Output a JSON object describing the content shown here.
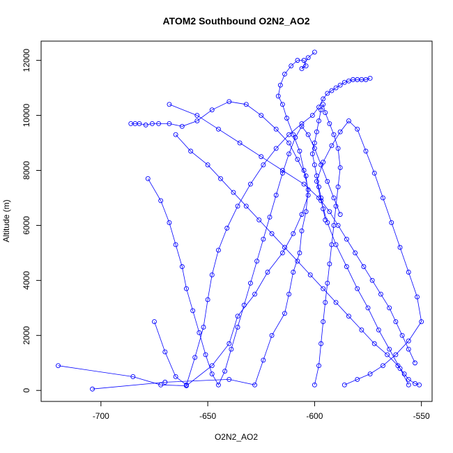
{
  "chart_data": {
    "type": "line",
    "title": "ATOM2 Southbound O2N2_AO2",
    "xlabel": "O2N2_AO2",
    "ylabel": "Altitude (m)",
    "xlim": [
      -728,
      -545
    ],
    "ylim": [
      -400,
      12700
    ],
    "xticks": [
      -700,
      -650,
      -600,
      -550
    ],
    "yticks": [
      0,
      2000,
      4000,
      6000,
      8000,
      10000,
      12000
    ],
    "grid": false,
    "legend": "none",
    "color": "#0000ff",
    "series": [
      {
        "x": [
          -720,
          -685,
          -672,
          -660,
          -648,
          -640,
          -636,
          -628,
          -622,
          -615,
          -610,
          -606,
          -603,
          -604,
          -608,
          -612,
          -618,
          -625,
          -632,
          -640,
          -648,
          -655,
          -662,
          -668,
          -673,
          -676,
          -679,
          -682,
          -684,
          -686
        ],
        "y": [
          900,
          500,
          200,
          170,
          900,
          1700,
          2700,
          3500,
          4300,
          5000,
          5700,
          6400,
          7100,
          7800,
          8400,
          9000,
          9500,
          10000,
          10400,
          10500,
          10200,
          9800,
          9600,
          9700,
          9700,
          9700,
          9650,
          9700,
          9700,
          9700
        ]
      },
      {
        "x": [
          -704,
          -670,
          -640,
          -628,
          -624,
          -620,
          -614,
          -612,
          -610,
          -607,
          -606,
          -604,
          -603,
          -605,
          -607,
          -610,
          -613,
          -615,
          -617,
          -616,
          -614,
          -611,
          -608,
          -605,
          -604,
          -606,
          -603,
          -600
        ],
        "y": [
          50,
          300,
          400,
          200,
          1100,
          2000,
          2800,
          3500,
          4300,
          5000,
          5800,
          6500,
          7300,
          8000,
          8700,
          9300,
          9900,
          10400,
          10700,
          11100,
          11500,
          11800,
          12000,
          12000,
          11800,
          11700,
          12100,
          12300
        ]
      },
      {
        "x": [
          -675,
          -670,
          -665,
          -660,
          -656,
          -652,
          -650,
          -648,
          -645,
          -641,
          -636,
          -630,
          -624,
          -618,
          -612,
          -606,
          -601,
          -598,
          -596,
          -594,
          -592,
          -590,
          -588,
          -586,
          -584,
          -582,
          -580,
          -578,
          -576,
          -574
        ],
        "y": [
          2500,
          1400,
          500,
          200,
          1200,
          2300,
          3300,
          4200,
          5100,
          5900,
          6700,
          7500,
          8200,
          8800,
          9300,
          9700,
          10000,
          10300,
          10600,
          10800,
          10900,
          11000,
          11100,
          11200,
          11250,
          11300,
          11300,
          11300,
          11300,
          11350
        ]
      },
      {
        "x": [
          -600,
          -598,
          -597,
          -596,
          -595,
          -594,
          -593,
          -592,
          -591,
          -590,
          -589,
          -588,
          -589,
          -591,
          -593,
          -595,
          -596,
          -597,
          -598,
          -599,
          -600,
          -601,
          -600,
          -599,
          -598,
          -597,
          -596,
          -595
        ],
        "y": [
          200,
          900,
          1700,
          2500,
          3200,
          3900,
          4600,
          5300,
          6000,
          6700,
          7400,
          8100,
          8800,
          9300,
          9700,
          10100,
          10400,
          10200,
          9800,
          9400,
          9000,
          8600,
          8200,
          7800,
          7400,
          7000,
          6600,
          6200
        ]
      },
      {
        "x": [
          -556,
          -560,
          -565,
          -570,
          -575,
          -580,
          -585,
          -590,
          -594,
          -597,
          -599,
          -596,
          -592,
          -588,
          -584,
          -580,
          -576,
          -572,
          -568,
          -564,
          -560,
          -556,
          -552,
          -550,
          -556,
          -562,
          -568,
          -574,
          -580,
          -586
        ],
        "y": [
          200,
          800,
          1500,
          2200,
          3000,
          3700,
          4500,
          5300,
          6100,
          6900,
          7600,
          8300,
          8900,
          9400,
          9800,
          9500,
          8700,
          7900,
          7000,
          6100,
          5200,
          4300,
          3400,
          2500,
          1800,
          1300,
          900,
          600,
          400,
          200
        ]
      },
      {
        "x": [
          -678,
          -672,
          -668,
          -665,
          -662,
          -660,
          -657,
          -654,
          -651,
          -648,
          -645,
          -642,
          -639,
          -636,
          -633,
          -630,
          -627,
          -624,
          -621,
          -618,
          -615,
          -612,
          -609,
          -606,
          -603,
          -600,
          -597,
          -594,
          -591,
          -588
        ],
        "y": [
          7700,
          6900,
          6100,
          5300,
          4500,
          3700,
          2900,
          2100,
          1300,
          600,
          200,
          700,
          1500,
          2300,
          3100,
          3900,
          4700,
          5500,
          6300,
          7100,
          7900,
          8600,
          9200,
          9600,
          9300,
          8800,
          8200,
          7600,
          7000,
          6400
        ]
      },
      {
        "x": [
          -665,
          -658,
          -650,
          -644,
          -638,
          -632,
          -626,
          -620,
          -614,
          -608,
          -602,
          -596,
          -590,
          -584,
          -578,
          -572,
          -566,
          -561,
          -558,
          -556,
          -553,
          -551
        ],
        "y": [
          9300,
          8700,
          8200,
          7700,
          7200,
          6700,
          6200,
          5700,
          5200,
          4700,
          4200,
          3700,
          3200,
          2700,
          2200,
          1700,
          1300,
          900,
          600,
          400,
          250,
          200
        ]
      },
      {
        "x": [
          -668,
          -655,
          -645,
          -635,
          -625,
          -615,
          -605,
          -598,
          -593,
          -589,
          -585,
          -581,
          -577,
          -573,
          -569,
          -565,
          -562,
          -559,
          -556,
          -553
        ],
        "y": [
          10400,
          10000,
          9500,
          9000,
          8500,
          8000,
          7500,
          7000,
          6500,
          6000,
          5500,
          5000,
          4500,
          4000,
          3500,
          3000,
          2500,
          2000,
          1500,
          1000
        ]
      }
    ]
  }
}
